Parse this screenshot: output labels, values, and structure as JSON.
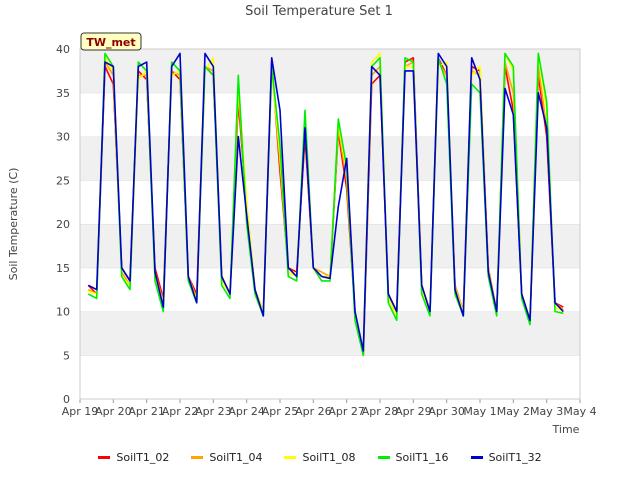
{
  "chart_data": {
    "type": "line",
    "title": "Soil Temperature Set 1",
    "xlabel": "Time",
    "ylabel": "Soil Temperature (C)",
    "station_badge": "TW_met",
    "ylim": [
      0,
      40
    ],
    "yticks": [
      0,
      5,
      10,
      15,
      20,
      25,
      30,
      35,
      40
    ],
    "xlim": [
      "2024-04-19",
      "2024-05-04"
    ],
    "xtick_labels": [
      "Apr 19",
      "Apr 20",
      "Apr 21",
      "Apr 22",
      "Apr 23",
      "Apr 24",
      "Apr 25",
      "Apr 26",
      "Apr 27",
      "Apr 28",
      "Apr 29",
      "Apr 30",
      "May 1",
      "May 2",
      "May 3",
      "May 4"
    ],
    "grid": "horizontal bands",
    "legend_position": "bottom",
    "colors": {
      "SoilT1_02": "#ff0000",
      "SoilT1_04": "#ffa500",
      "SoilT1_08": "#ffff00",
      "SoilT1_16": "#00ee00",
      "SoilT1_32": "#0000cc"
    },
    "x": [
      "Apr 19 06:00",
      "Apr 19 12:00",
      "Apr 19 18:00",
      "Apr 20 00:00",
      "Apr 20 06:00",
      "Apr 20 12:00",
      "Apr 20 18:00",
      "Apr 21 00:00",
      "Apr 21 06:00",
      "Apr 21 12:00",
      "Apr 21 18:00",
      "Apr 22 00:00",
      "Apr 22 06:00",
      "Apr 22 12:00",
      "Apr 22 18:00",
      "Apr 23 00:00",
      "Apr 23 06:00",
      "Apr 23 12:00",
      "Apr 23 18:00",
      "Apr 24 00:00",
      "Apr 24 06:00",
      "Apr 24 12:00",
      "Apr 24 18:00",
      "Apr 25 00:00",
      "Apr 25 06:00",
      "Apr 25 12:00",
      "Apr 25 18:00",
      "Apr 26 00:00",
      "Apr 26 06:00",
      "Apr 26 12:00",
      "Apr 26 18:00",
      "Apr 27 00:00",
      "Apr 27 06:00",
      "Apr 27 12:00",
      "Apr 27 18:00",
      "Apr 28 00:00",
      "Apr 28 06:00",
      "Apr 28 12:00",
      "Apr 28 18:00",
      "Apr 29 00:00",
      "Apr 29 06:00",
      "Apr 29 12:00",
      "Apr 29 18:00",
      "Apr 30 00:00",
      "Apr 30 06:00",
      "Apr 30 12:00",
      "Apr 30 18:00",
      "May 1 00:00",
      "May 1 06:00",
      "May 1 12:00",
      "May 1 18:00",
      "May 2 00:00",
      "May 2 06:00",
      "May 2 12:00",
      "May 2 18:00",
      "May 3 00:00",
      "May 3 06:00",
      "May 3 12:00"
    ],
    "series": [
      {
        "name": "SoilT1_02",
        "values": [
          13.0,
          12.0,
          38.0,
          36.0,
          15.0,
          13.5,
          37.5,
          36.5,
          15.0,
          11.5,
          37.5,
          36.5,
          14.0,
          12.0,
          38.0,
          37.0,
          14.0,
          12.0,
          34.0,
          22.0,
          12.5,
          10.0,
          38.5,
          26.0,
          15.0,
          14.5,
          30.0,
          15.0,
          14.0,
          13.8,
          30.5,
          24.0,
          10.0,
          5.0,
          36.0,
          37.0,
          12.0,
          10.0,
          38.5,
          39.0,
          13.0,
          10.0,
          39.0,
          37.0,
          13.0,
          10.0,
          38.0,
          37.5,
          15.0,
          10.0,
          38.0,
          33.0,
          12.0,
          9.0,
          37.0,
          30.0,
          11.0,
          10.5
        ]
      },
      {
        "name": "SoilT1_04",
        "values": [
          12.5,
          12.0,
          38.5,
          37.0,
          14.5,
          13.0,
          37.0,
          37.0,
          14.5,
          11.0,
          37.5,
          37.0,
          14.0,
          11.5,
          38.0,
          37.5,
          14.0,
          12.0,
          35.0,
          22.0,
          12.5,
          10.0,
          38.0,
          27.0,
          15.0,
          14.0,
          31.0,
          15.0,
          14.5,
          14.0,
          31.0,
          25.0,
          10.0,
          5.0,
          37.0,
          38.0,
          12.0,
          10.0,
          38.0,
          38.5,
          13.0,
          10.0,
          38.5,
          37.0,
          13.0,
          10.0,
          37.5,
          37.0,
          15.0,
          10.0,
          38.5,
          35.0,
          12.0,
          9.0,
          38.0,
          31.0,
          11.0,
          10.2
        ]
      },
      {
        "name": "SoilT1_08",
        "values": [
          12.3,
          12.0,
          39.0,
          37.5,
          14.0,
          13.0,
          36.5,
          37.5,
          14.0,
          11.0,
          37.0,
          37.5,
          13.5,
          11.5,
          37.5,
          39.0,
          13.5,
          12.0,
          36.0,
          22.5,
          12.5,
          10.0,
          37.5,
          28.0,
          14.5,
          14.0,
          32.0,
          15.0,
          14.0,
          14.0,
          31.5,
          26.0,
          9.5,
          5.5,
          38.5,
          39.5,
          11.5,
          9.5,
          38.0,
          38.0,
          12.5,
          10.0,
          38.0,
          38.5,
          12.5,
          10.0,
          37.0,
          38.0,
          14.5,
          10.0,
          39.5,
          37.5,
          12.0,
          9.0,
          39.5,
          33.0,
          10.5,
          10.0
        ]
      },
      {
        "name": "SoilT1_16",
        "values": [
          12.0,
          11.5,
          39.5,
          38.0,
          14.0,
          12.5,
          38.5,
          37.5,
          13.5,
          10.0,
          38.5,
          37.5,
          13.5,
          11.0,
          38.0,
          37.0,
          13.0,
          11.5,
          37.0,
          20.0,
          12.0,
          9.5,
          38.0,
          29.0,
          14.0,
          13.5,
          33.0,
          15.0,
          13.5,
          13.5,
          32.0,
          26.5,
          9.0,
          5.0,
          38.0,
          39.0,
          11.0,
          9.0,
          39.0,
          38.5,
          12.0,
          9.5,
          39.0,
          36.0,
          12.0,
          9.5,
          36.0,
          35.0,
          14.0,
          9.5,
          39.5,
          38.0,
          11.5,
          8.5,
          39.5,
          34.0,
          10.0,
          9.8
        ]
      },
      {
        "name": "SoilT1_32",
        "values": [
          13.0,
          12.5,
          38.5,
          38.0,
          15.0,
          13.5,
          38.0,
          38.5,
          14.5,
          10.5,
          38.0,
          39.5,
          14.0,
          11.0,
          39.5,
          38.0,
          14.0,
          12.0,
          30.0,
          21.0,
          12.5,
          9.5,
          39.0,
          33.0,
          15.0,
          14.0,
          31.0,
          15.0,
          14.0,
          13.8,
          22.0,
          27.5,
          10.0,
          5.5,
          38.0,
          37.0,
          12.0,
          10.0,
          37.5,
          37.5,
          13.0,
          10.0,
          39.5,
          38.0,
          12.5,
          9.5,
          39.0,
          36.5,
          14.5,
          10.0,
          35.5,
          32.5,
          12.0,
          9.0,
          35.0,
          31.0,
          11.0,
          10.0
        ]
      }
    ]
  }
}
